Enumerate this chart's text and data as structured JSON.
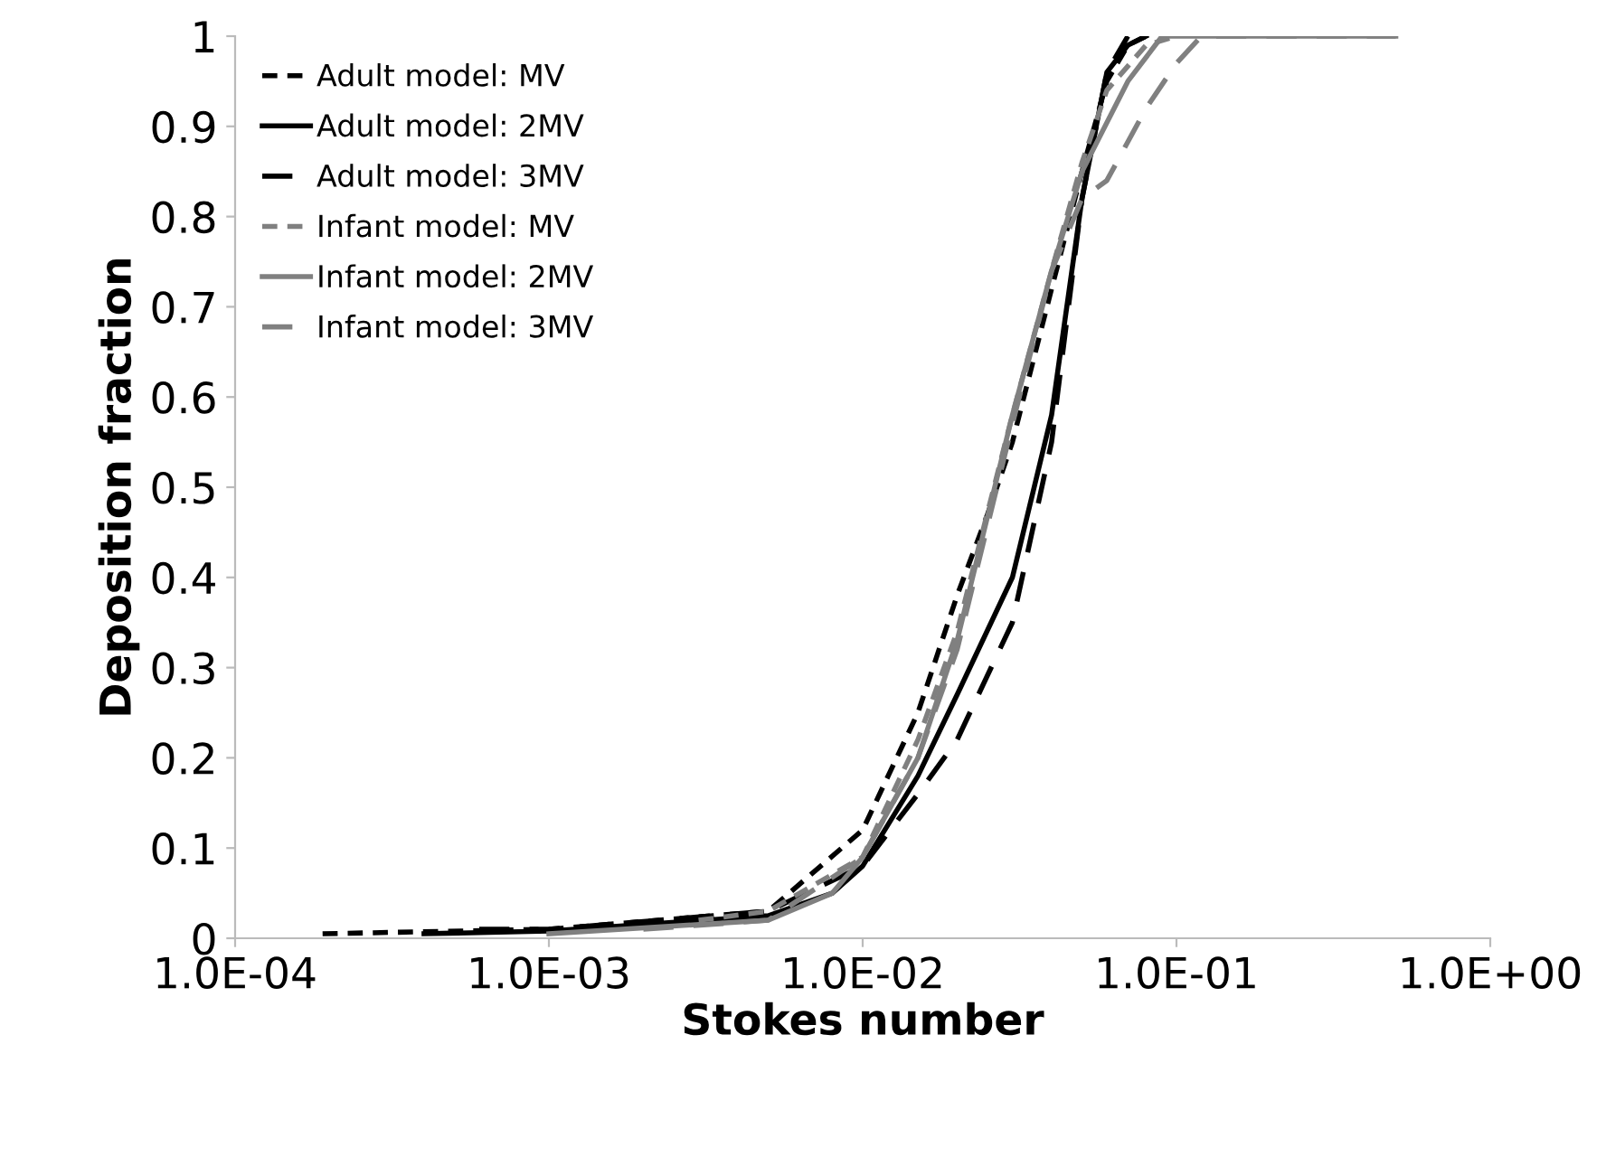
{
  "chart_data": {
    "type": "line",
    "xlabel": "Stokes number",
    "ylabel": "Deposition fraction",
    "log": "x",
    "grid": false,
    "legend": "top left",
    "xlim": [
      0.0001,
      1
    ],
    "xticks": [
      {
        "value": 0.0001,
        "label": "1.0E-04"
      },
      {
        "value": 0.001,
        "label": "1.0E-03"
      },
      {
        "value": 0.01,
        "label": "1.0E-02"
      },
      {
        "value": 0.1,
        "label": "1.0E-01"
      },
      {
        "value": 1,
        "label": "1.0E+00"
      }
    ],
    "ylim": [
      0,
      1
    ],
    "yticks": [
      0,
      0.1,
      0.2,
      0.3,
      0.4,
      0.5,
      0.6,
      0.7,
      0.8,
      0.9,
      1
    ],
    "series": [
      {
        "name": "Adult model: MV",
        "color": "#000000",
        "line_style": "dotted",
        "x": [
          0.00019,
          0.001,
          0.005,
          0.01,
          0.015,
          0.02,
          0.025,
          0.03,
          0.04,
          0.05,
          0.06,
          0.07,
          0.08
        ],
        "values": [
          0.005,
          0.01,
          0.03,
          0.12,
          0.25,
          0.38,
          0.47,
          0.55,
          0.72,
          0.85,
          0.95,
          0.99,
          1
        ]
      },
      {
        "name": "Adult model: 2MV",
        "color": "#000000",
        "line_style": "solid",
        "x": [
          0.0004,
          0.001,
          0.005,
          0.008,
          0.01,
          0.015,
          0.02,
          0.03,
          0.04,
          0.05,
          0.06,
          0.07,
          0.08
        ],
        "values": [
          0.005,
          0.008,
          0.025,
          0.05,
          0.08,
          0.18,
          0.27,
          0.4,
          0.58,
          0.82,
          0.96,
          0.99,
          1
        ]
      },
      {
        "name": "Adult model: 3MV",
        "color": "#000000",
        "line_style": "dashed",
        "x": [
          0.0006,
          0.001,
          0.005,
          0.01,
          0.015,
          0.02,
          0.03,
          0.04,
          0.05,
          0.06,
          0.07
        ],
        "values": [
          0.01,
          0.01,
          0.03,
          0.08,
          0.16,
          0.22,
          0.35,
          0.55,
          0.82,
          0.96,
          1
        ]
      },
      {
        "name": "Infant model: MV",
        "color": "#808080",
        "line_style": "dotted",
        "x": [
          0.003,
          0.005,
          0.01,
          0.015,
          0.02,
          0.03,
          0.04,
          0.05,
          0.06,
          0.08,
          0.1
        ],
        "values": [
          0.02,
          0.03,
          0.09,
          0.22,
          0.34,
          0.58,
          0.74,
          0.86,
          0.94,
          0.99,
          1
        ]
      },
      {
        "name": "Infant model: 2MV",
        "color": "#808080",
        "line_style": "solid",
        "x": [
          0.001,
          0.005,
          0.008,
          0.01,
          0.015,
          0.02,
          0.03,
          0.04,
          0.05,
          0.07,
          0.09,
          0.5
        ],
        "values": [
          0.005,
          0.02,
          0.05,
          0.09,
          0.2,
          0.33,
          0.58,
          0.74,
          0.85,
          0.95,
          1,
          1
        ]
      },
      {
        "name": "Infant model: 3MV",
        "color": "#808080",
        "line_style": "dashed",
        "x": [
          0.002,
          0.005,
          0.01,
          0.015,
          0.02,
          0.03,
          0.04,
          0.05,
          0.06,
          0.08,
          0.1,
          0.12,
          0.5
        ],
        "values": [
          0.01,
          0.02,
          0.09,
          0.2,
          0.32,
          0.57,
          0.74,
          0.82,
          0.84,
          0.92,
          0.97,
          1,
          1
        ]
      }
    ]
  }
}
